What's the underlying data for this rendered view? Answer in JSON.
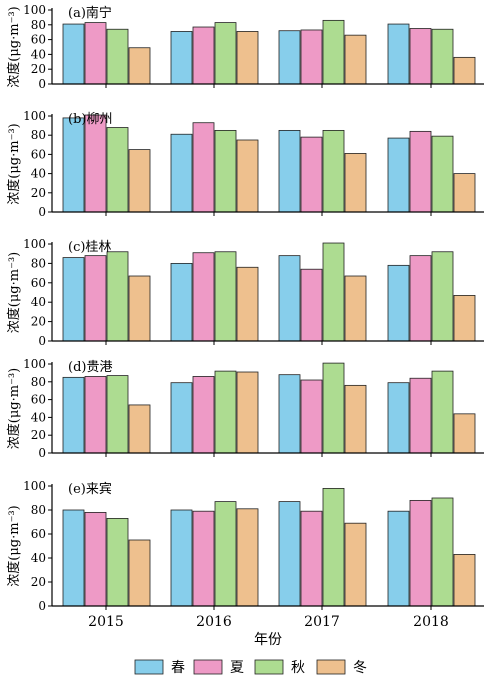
{
  "chart_data": [
    {
      "type": "bar",
      "panel_label": "(a)南宁",
      "ylabel": "浓度(μg·m⁻³)",
      "ylim": [
        0,
        100
      ],
      "yticks": [
        0,
        20,
        40,
        60,
        80,
        100
      ],
      "categories": [
        "2015",
        "2016",
        "2017",
        "2018"
      ],
      "series": [
        {
          "name": "春",
          "values": [
            81,
            71,
            72,
            81
          ]
        },
        {
          "name": "夏",
          "values": [
            83,
            77,
            73,
            75
          ]
        },
        {
          "name": "秋",
          "values": [
            74,
            83,
            86,
            74
          ]
        },
        {
          "name": "冬",
          "values": [
            49,
            71,
            66,
            36
          ]
        }
      ]
    },
    {
      "type": "bar",
      "panel_label": "(b)柳州",
      "ylabel": "浓度(μg·m⁻³)",
      "ylim": [
        0,
        100
      ],
      "yticks": [
        0,
        20,
        40,
        60,
        80,
        100
      ],
      "categories": [
        "2015",
        "2016",
        "2017",
        "2018"
      ],
      "series": [
        {
          "name": "春",
          "values": [
            98,
            81,
            85,
            77
          ]
        },
        {
          "name": "夏",
          "values": [
            101,
            93,
            78,
            84
          ]
        },
        {
          "name": "秋",
          "values": [
            88,
            85,
            85,
            79
          ]
        },
        {
          "name": "冬",
          "values": [
            65,
            75,
            61,
            40
          ]
        }
      ]
    },
    {
      "type": "bar",
      "panel_label": "(c)桂林",
      "ylabel": "浓度(μg·m⁻³)",
      "ylim": [
        0,
        100
      ],
      "yticks": [
        0,
        20,
        40,
        60,
        80,
        100
      ],
      "categories": [
        "2015",
        "2016",
        "2017",
        "2018"
      ],
      "series": [
        {
          "name": "春",
          "values": [
            86,
            80,
            88,
            78
          ]
        },
        {
          "name": "夏",
          "values": [
            88,
            91,
            74,
            88
          ]
        },
        {
          "name": "秋",
          "values": [
            92,
            92,
            101,
            92
          ]
        },
        {
          "name": "冬",
          "values": [
            67,
            76,
            67,
            47
          ]
        }
      ]
    },
    {
      "type": "bar",
      "panel_label": "(d)贵港",
      "ylabel": "浓度(μg·m⁻³)",
      "ylim": [
        0,
        100
      ],
      "yticks": [
        0,
        20,
        40,
        60,
        80,
        100
      ],
      "categories": [
        "2015",
        "2016",
        "2017",
        "2018"
      ],
      "series": [
        {
          "name": "春",
          "values": [
            85,
            79,
            88,
            79
          ]
        },
        {
          "name": "夏",
          "values": [
            86,
            86,
            82,
            84
          ]
        },
        {
          "name": "秋",
          "values": [
            87,
            92,
            101,
            92
          ]
        },
        {
          "name": "冬",
          "values": [
            54,
            91,
            76,
            44
          ]
        }
      ]
    },
    {
      "type": "bar",
      "panel_label": "(e)来宾",
      "ylabel": "浓度(μg·m⁻³)",
      "ylim": [
        0,
        100
      ],
      "yticks": [
        0,
        20,
        40,
        60,
        80,
        100
      ],
      "categories": [
        "2015",
        "2016",
        "2017",
        "2018"
      ],
      "series": [
        {
          "name": "春",
          "values": [
            80,
            80,
            87,
            79
          ]
        },
        {
          "name": "夏",
          "values": [
            78,
            79,
            79,
            88
          ]
        },
        {
          "name": "秋",
          "values": [
            73,
            87,
            98,
            90
          ]
        },
        {
          "name": "冬",
          "values": [
            55,
            81,
            69,
            43
          ]
        }
      ]
    }
  ],
  "xlabel": "年份",
  "legend": {
    "placement": "bottom",
    "items": [
      {
        "name": "春",
        "color": "#87ceeb"
      },
      {
        "name": "夏",
        "color": "#ee9ac6"
      },
      {
        "name": "秋",
        "color": "#addc91"
      },
      {
        "name": "冬",
        "color": "#eec08e"
      }
    ]
  }
}
